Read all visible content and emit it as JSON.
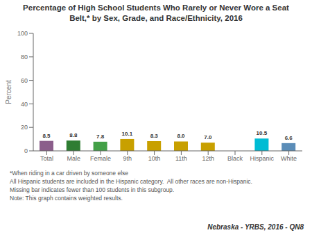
{
  "chart_data": {
    "type": "bar",
    "title": "Percentage of High School Students Who Rarely or Never Wore a Seat\nBelt,* by Sex, Grade, and Race/Ethnicity, 2016",
    "categories": [
      "Total",
      "Male",
      "Female",
      "9th",
      "10th",
      "11th",
      "12th",
      "Black",
      "Hispanic",
      "White"
    ],
    "values": [
      8.5,
      8.8,
      7.8,
      10.1,
      8.3,
      8.0,
      7.0,
      null,
      10.5,
      6.6
    ],
    "value_labels": [
      "8.5",
      "8.8",
      "7.8",
      "10.1",
      "8.3",
      "8.0",
      "7.0",
      null,
      "10.5",
      "6.6"
    ],
    "colors": [
      "#8B5E8B",
      "#2E7D32",
      "#43A047",
      "#C8A000",
      "#C8A000",
      "#C8A000",
      "#C8A000",
      null,
      "#00BCD4",
      "#5B8DB8"
    ],
    "ylabel": "Percent",
    "ylim": [
      0,
      100
    ],
    "yticks": [
      0,
      20,
      40,
      60,
      80,
      100
    ],
    "data_labels": true,
    "grid": false,
    "annotations": [
      "*When riding in a car driven by someone else",
      "All Hispanic students are included in the Hispanic category.  All other races are non-Hispanic.",
      "Missing bar indicates fewer than 100 students in this subgroup.",
      "Note: This graph contains weighted results.",
      "Nebraska - YRBS, 2016 - QN8"
    ]
  }
}
